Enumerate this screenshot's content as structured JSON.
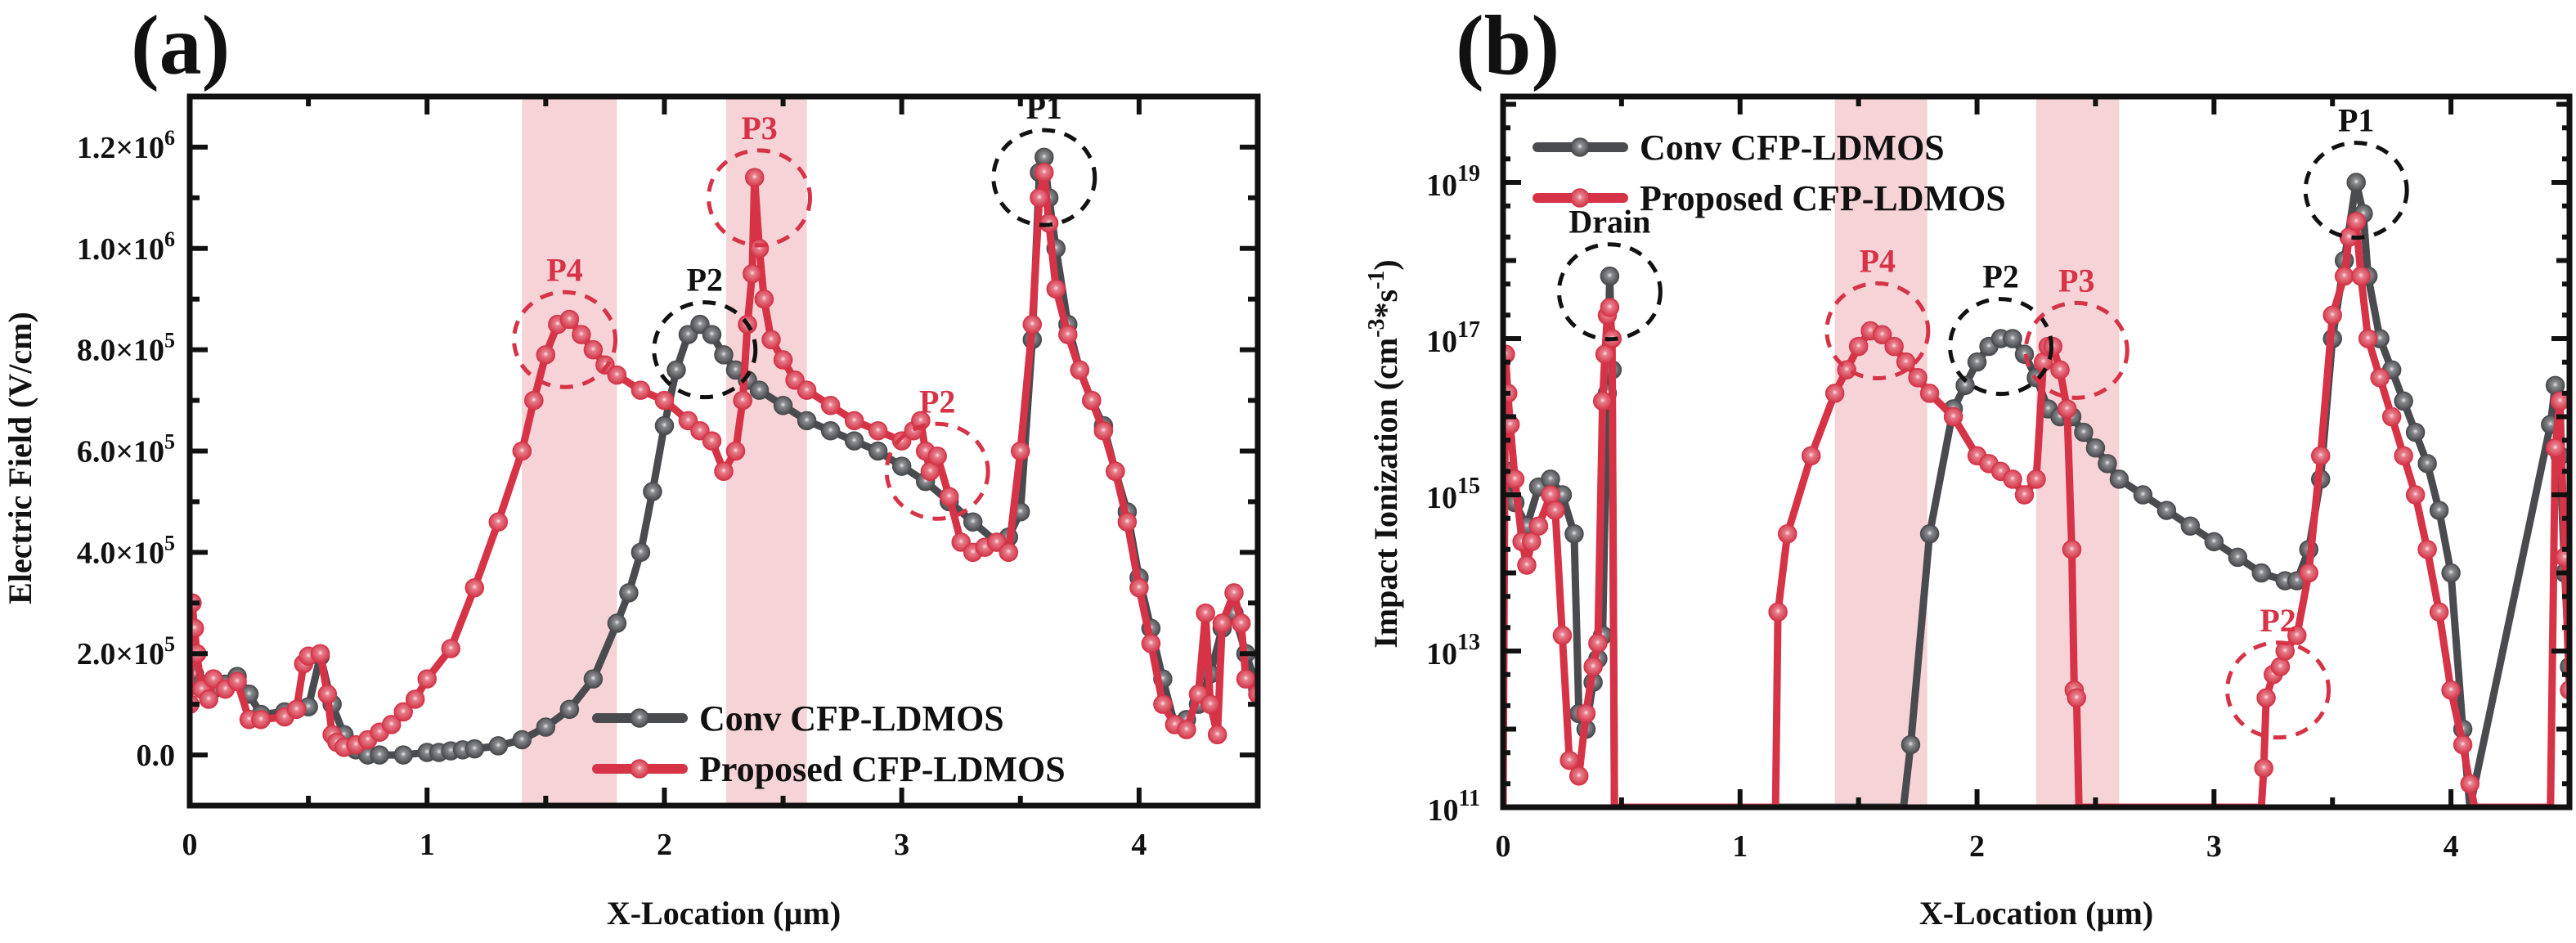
{
  "colors": {
    "conv": "#4a4b4f",
    "proposed": "#d63347",
    "band": "#f6d3d7",
    "axis": "#111111",
    "anno_black": "#111111",
    "anno_red": "#d63347"
  },
  "chart_data": [
    {
      "panel": "(a)",
      "type": "line",
      "title": "",
      "xlabel": "X-Location (µm)",
      "ylabel": "Electric Field (V/cm)",
      "xlim": [
        0,
        4.5
      ],
      "ylim": [
        -100000,
        1300000
      ],
      "yscale": "linear",
      "xticks": [
        0,
        1,
        2,
        3,
        4
      ],
      "xtick_labels": [
        "0",
        "1",
        "2",
        "3",
        "4"
      ],
      "yticks": [
        0,
        200000,
        400000,
        600000,
        800000,
        1000000,
        1200000
      ],
      "ytick_labels": [
        {
          "mant": "0.0",
          "exp": ""
        },
        {
          "mant": "2.0×10",
          "exp": "5"
        },
        {
          "mant": "4.0×10",
          "exp": "5"
        },
        {
          "mant": "6.0×10",
          "exp": "5"
        },
        {
          "mant": "8.0×10",
          "exp": "5"
        },
        {
          "mant": "1.0×10",
          "exp": "6"
        },
        {
          "mant": "1.2×10",
          "exp": "6"
        }
      ],
      "grid": false,
      "legend": {
        "position": "bottom-center",
        "entries": [
          "Conv CFP-LDMOS",
          "Proposed CFP-LDMOS"
        ]
      },
      "shaded_bands": [
        [
          1.4,
          1.8
        ],
        [
          2.26,
          2.6
        ]
      ],
      "annotations": [
        {
          "text": "P4",
          "x": 1.58,
          "y": 820000,
          "color": "red",
          "circle": true
        },
        {
          "text": "P2",
          "x": 2.17,
          "y": 800000,
          "color": "black",
          "circle": true
        },
        {
          "text": "P3",
          "x": 2.4,
          "y": 1100000,
          "color": "red",
          "circle": true
        },
        {
          "text": "P2",
          "x": 3.15,
          "y": 560000,
          "color": "red",
          "circle": true
        },
        {
          "text": "P1",
          "x": 3.6,
          "y": 1140000,
          "color": "black",
          "circle": true
        }
      ],
      "series": [
        {
          "name": "Conv CFP-LDMOS",
          "x": [
            0.0,
            0.02,
            0.05,
            0.1,
            0.15,
            0.2,
            0.25,
            0.3,
            0.4,
            0.5,
            0.55,
            0.6,
            0.65,
            0.7,
            0.75,
            0.8,
            0.9,
            1.0,
            1.05,
            1.1,
            1.15,
            1.2,
            1.3,
            1.4,
            1.5,
            1.6,
            1.7,
            1.8,
            1.85,
            1.9,
            1.95,
            2.0,
            2.05,
            2.1,
            2.15,
            2.2,
            2.25,
            2.3,
            2.35,
            2.4,
            2.5,
            2.6,
            2.7,
            2.8,
            2.9,
            3.0,
            3.1,
            3.2,
            3.3,
            3.4,
            3.45,
            3.5,
            3.55,
            3.58,
            3.6,
            3.62,
            3.65,
            3.7,
            3.75,
            3.8,
            3.85,
            3.9,
            3.95,
            4.0,
            4.05,
            4.1,
            4.15,
            4.2,
            4.25,
            4.3,
            4.35,
            4.4,
            4.45,
            4.5
          ],
          "y": [
            150000,
            160000,
            140000,
            130000,
            140000,
            155000,
            120000,
            80000,
            85000,
            95000,
            195000,
            100000,
            40000,
            10000,
            0,
            0,
            0,
            5000,
            5000,
            8000,
            10000,
            12000,
            18000,
            30000,
            55000,
            90000,
            150000,
            260000,
            320000,
            400000,
            520000,
            650000,
            760000,
            830000,
            850000,
            830000,
            790000,
            760000,
            740000,
            720000,
            690000,
            660000,
            640000,
            620000,
            600000,
            570000,
            540000,
            500000,
            460000,
            420000,
            430000,
            480000,
            820000,
            1150000,
            1180000,
            1100000,
            1000000,
            850000,
            760000,
            700000,
            650000,
            560000,
            480000,
            350000,
            250000,
            150000,
            60000,
            70000,
            100000,
            160000,
            250000,
            280000,
            200000,
            130000
          ]
        },
        {
          "name": "Proposed CFP-LDMOS",
          "x": [
            0.0,
            0.01,
            0.02,
            0.03,
            0.05,
            0.08,
            0.1,
            0.15,
            0.2,
            0.25,
            0.3,
            0.4,
            0.45,
            0.48,
            0.5,
            0.55,
            0.58,
            0.6,
            0.62,
            0.65,
            0.7,
            0.75,
            0.8,
            0.85,
            0.9,
            0.95,
            1.0,
            1.1,
            1.2,
            1.3,
            1.4,
            1.45,
            1.5,
            1.55,
            1.6,
            1.65,
            1.7,
            1.75,
            1.8,
            1.9,
            2.0,
            2.1,
            2.15,
            2.2,
            2.25,
            2.3,
            2.33,
            2.35,
            2.37,
            2.38,
            2.4,
            2.42,
            2.45,
            2.5,
            2.55,
            2.6,
            2.7,
            2.8,
            2.9,
            3.0,
            3.05,
            3.08,
            3.1,
            3.12,
            3.15,
            3.2,
            3.25,
            3.3,
            3.35,
            3.4,
            3.45,
            3.5,
            3.55,
            3.58,
            3.6,
            3.62,
            3.65,
            3.7,
            3.75,
            3.8,
            3.85,
            3.9,
            3.95,
            4.0,
            4.05,
            4.1,
            4.15,
            4.2,
            4.25,
            4.28,
            4.3,
            4.33,
            4.35,
            4.4,
            4.43,
            4.45,
            4.5
          ],
          "y": [
            100000,
            300000,
            250000,
            200000,
            130000,
            110000,
            150000,
            130000,
            145000,
            70000,
            70000,
            75000,
            90000,
            180000,
            195000,
            200000,
            120000,
            40000,
            25000,
            15000,
            20000,
            30000,
            45000,
            60000,
            85000,
            110000,
            150000,
            210000,
            330000,
            460000,
            600000,
            700000,
            790000,
            850000,
            860000,
            830000,
            800000,
            770000,
            750000,
            720000,
            700000,
            660000,
            640000,
            620000,
            560000,
            600000,
            700000,
            850000,
            950000,
            1140000,
            1000000,
            900000,
            820000,
            780000,
            740000,
            720000,
            690000,
            660000,
            640000,
            620000,
            640000,
            660000,
            600000,
            560000,
            590000,
            510000,
            420000,
            400000,
            410000,
            420000,
            400000,
            600000,
            850000,
            1100000,
            1150000,
            1050000,
            920000,
            830000,
            760000,
            700000,
            640000,
            560000,
            460000,
            330000,
            220000,
            100000,
            60000,
            50000,
            120000,
            280000,
            100000,
            40000,
            260000,
            320000,
            260000,
            150000,
            120000
          ]
        }
      ]
    },
    {
      "panel": "(b)",
      "type": "line",
      "title": "",
      "xlabel": "X-Location (µm)",
      "ylabel": "Impact Ionization  (cm⁻³*s⁻¹)",
      "ylabel_parts": {
        "main": "Impact Ionization  (cm",
        "sup1": "-3",
        "mid": "*s",
        "sup2": "-1",
        "end": ")"
      },
      "xlim": [
        0,
        4.5
      ],
      "ylim_log10": [
        11,
        20.1
      ],
      "yscale": "log",
      "xticks": [
        0,
        1,
        2,
        3,
        4
      ],
      "xtick_labels": [
        "0",
        "1",
        "2",
        "3",
        "4"
      ],
      "yticks_log10": [
        11,
        13,
        15,
        17,
        19
      ],
      "ytick_labels": [
        {
          "mant": "10",
          "exp": "11"
        },
        {
          "mant": "10",
          "exp": "13"
        },
        {
          "mant": "10",
          "exp": "15"
        },
        {
          "mant": "10",
          "exp": "17"
        },
        {
          "mant": "10",
          "exp": "19"
        }
      ],
      "grid": false,
      "legend": {
        "position": "top-left",
        "entries": [
          "Conv CFP-LDMOS",
          "Proposed CFP-LDMOS"
        ]
      },
      "shaded_bands": [
        [
          1.4,
          1.79
        ],
        [
          2.25,
          2.6
        ]
      ],
      "annotations": [
        {
          "text": "Drain",
          "x": 0.45,
          "y_log10": 17.6,
          "color": "black",
          "circle": true
        },
        {
          "text": "P4",
          "x": 1.58,
          "y_log10": 17.1,
          "color": "red",
          "circle": true
        },
        {
          "text": "P2",
          "x": 2.1,
          "y_log10": 16.9,
          "color": "black",
          "circle": true
        },
        {
          "text": "P3",
          "x": 2.42,
          "y_log10": 16.85,
          "color": "red",
          "circle": true
        },
        {
          "text": "P2",
          "x": 3.27,
          "y_log10": 12.5,
          "color": "red",
          "circle": true
        },
        {
          "text": "P1",
          "x": 3.6,
          "y_log10": 18.9,
          "color": "black",
          "circle": true
        }
      ],
      "series": [
        {
          "name": "Conv CFP-LDMOS",
          "x": [
            0.0,
            0.02,
            0.05,
            0.1,
            0.15,
            0.2,
            0.25,
            0.3,
            0.32,
            0.35,
            0.38,
            0.4,
            0.42,
            0.44,
            0.45,
            0.46,
            0.47,
            1.69,
            1.72,
            1.8,
            1.9,
            1.95,
            2.0,
            2.05,
            2.1,
            2.15,
            2.2,
            2.25,
            2.3,
            2.35,
            2.4,
            2.45,
            2.5,
            2.55,
            2.6,
            2.7,
            2.8,
            2.9,
            3.0,
            3.1,
            3.2,
            3.3,
            3.35,
            3.4,
            3.45,
            3.5,
            3.55,
            3.6,
            3.63,
            3.65,
            3.7,
            3.75,
            3.8,
            3.85,
            3.9,
            3.95,
            4.0,
            4.05,
            4.08,
            4.42,
            4.44,
            4.46,
            4.48,
            4.5
          ],
          "y_log10": [
            15.0,
            15.3,
            14.9,
            14.6,
            15.1,
            15.2,
            15.0,
            14.5,
            12.2,
            12.0,
            12.6,
            12.9,
            13.2,
            16.3,
            17.8,
            16.6,
            11.0,
            11.0,
            11.8,
            14.5,
            16.1,
            16.4,
            16.7,
            16.9,
            17.0,
            17.0,
            16.8,
            16.5,
            16.1,
            16.0,
            16.0,
            15.8,
            15.6,
            15.4,
            15.2,
            15.0,
            14.8,
            14.6,
            14.4,
            14.2,
            14.0,
            13.9,
            13.9,
            14.3,
            15.2,
            17.0,
            18.0,
            19.0,
            18.6,
            17.8,
            17.0,
            16.6,
            16.2,
            15.8,
            15.4,
            14.8,
            14.0,
            12.0,
            11.0,
            15.9,
            16.4,
            15.5,
            14.0,
            12.8
          ]
        },
        {
          "name": "Proposed CFP-LDMOS",
          "x": [
            0.0,
            0.01,
            0.02,
            0.03,
            0.05,
            0.08,
            0.1,
            0.12,
            0.15,
            0.2,
            0.22,
            0.25,
            0.28,
            0.32,
            0.35,
            0.38,
            0.4,
            0.42,
            0.43,
            0.44,
            0.45,
            0.46,
            0.47,
            1.15,
            1.16,
            1.2,
            1.3,
            1.4,
            1.45,
            1.5,
            1.55,
            1.6,
            1.65,
            1.7,
            1.75,
            1.8,
            1.9,
            2.0,
            2.05,
            2.1,
            2.15,
            2.2,
            2.25,
            2.28,
            2.3,
            2.32,
            2.35,
            2.38,
            2.4,
            2.41,
            2.42,
            2.43,
            2.44,
            3.2,
            3.21,
            3.22,
            3.25,
            3.28,
            3.3,
            3.35,
            3.4,
            3.45,
            3.5,
            3.55,
            3.57,
            3.6,
            3.62,
            3.65,
            3.7,
            3.75,
            3.8,
            3.85,
            3.9,
            3.95,
            4.0,
            4.05,
            4.08,
            4.1,
            4.42,
            4.44,
            4.46,
            4.48,
            4.5
          ],
          "y_log10": [
            11.0,
            16.8,
            16.3,
            15.9,
            15.2,
            14.4,
            14.1,
            14.4,
            14.6,
            15.0,
            14.8,
            13.2,
            11.6,
            11.4,
            12.2,
            12.8,
            13.1,
            16.2,
            16.8,
            17.3,
            17.4,
            17.0,
            11.0,
            11.0,
            13.5,
            14.5,
            15.5,
            16.3,
            16.6,
            16.9,
            17.1,
            17.05,
            16.9,
            16.7,
            16.5,
            16.3,
            16.0,
            15.5,
            15.4,
            15.3,
            15.2,
            15.0,
            15.2,
            16.7,
            16.9,
            16.9,
            16.6,
            16.1,
            14.3,
            12.5,
            12.4,
            11.0,
            11.0,
            11.0,
            11.5,
            12.4,
            12.7,
            12.8,
            13.0,
            13.2,
            14.0,
            15.5,
            17.3,
            17.8,
            18.3,
            18.5,
            17.8,
            17.0,
            16.5,
            16.0,
            15.5,
            15.0,
            14.3,
            13.5,
            12.5,
            11.8,
            11.3,
            11.0,
            11.0,
            15.6,
            16.2,
            14.2,
            12.5
          ]
        }
      ]
    }
  ]
}
